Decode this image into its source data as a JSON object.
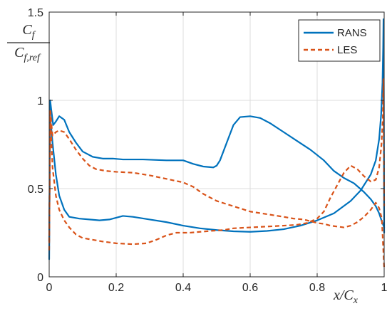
{
  "chart_data": {
    "type": "line",
    "xlabel": "x/C_x",
    "ylabel": "C_f / C_f,ref",
    "xlim": [
      0,
      1
    ],
    "ylim": [
      0,
      1.5
    ],
    "xticks": [
      0,
      0.2,
      0.4,
      0.6,
      0.8,
      1
    ],
    "xtick_labels": [
      "0",
      "0.2",
      "0.4",
      "0.6",
      "0.8",
      "1"
    ],
    "yticks": [
      0,
      0.5,
      1,
      1.5
    ],
    "ytick_labels": [
      "0",
      "0.5",
      "1",
      "1.5"
    ],
    "grid": true,
    "legend_position": "top-right",
    "series": [
      {
        "name": "RANS",
        "color": "#0072BD",
        "dash": "solid",
        "curves": [
          [
            [
              0.0,
              0.1
            ],
            [
              0.003,
              1.0
            ],
            [
              0.006,
              0.95
            ],
            [
              0.012,
              0.86
            ],
            [
              0.02,
              0.88
            ],
            [
              0.03,
              0.91
            ],
            [
              0.045,
              0.89
            ],
            [
              0.06,
              0.82
            ],
            [
              0.08,
              0.76
            ],
            [
              0.1,
              0.71
            ],
            [
              0.13,
              0.68
            ],
            [
              0.16,
              0.67
            ],
            [
              0.19,
              0.67
            ],
            [
              0.22,
              0.665
            ],
            [
              0.28,
              0.665
            ],
            [
              0.35,
              0.66
            ],
            [
              0.4,
              0.66
            ],
            [
              0.43,
              0.64
            ],
            [
              0.46,
              0.625
            ],
            [
              0.49,
              0.62
            ],
            [
              0.5,
              0.63
            ],
            [
              0.51,
              0.66
            ],
            [
              0.53,
              0.76
            ],
            [
              0.55,
              0.86
            ],
            [
              0.57,
              0.905
            ],
            [
              0.6,
              0.91
            ],
            [
              0.63,
              0.9
            ],
            [
              0.66,
              0.87
            ],
            [
              0.7,
              0.82
            ],
            [
              0.74,
              0.77
            ],
            [
              0.78,
              0.72
            ],
            [
              0.82,
              0.66
            ],
            [
              0.85,
              0.6
            ],
            [
              0.88,
              0.56
            ],
            [
              0.91,
              0.53
            ],
            [
              0.94,
              0.48
            ],
            [
              0.96,
              0.44
            ],
            [
              0.975,
              0.4
            ],
            [
              0.985,
              0.36
            ],
            [
              0.992,
              0.32
            ],
            [
              1.0,
              0.28
            ]
          ],
          [
            [
              0.0,
              0.2
            ],
            [
              0.003,
              0.9
            ],
            [
              0.006,
              0.85
            ],
            [
              0.01,
              0.76
            ],
            [
              0.02,
              0.58
            ],
            [
              0.03,
              0.46
            ],
            [
              0.045,
              0.38
            ],
            [
              0.06,
              0.34
            ],
            [
              0.09,
              0.33
            ],
            [
              0.12,
              0.325
            ],
            [
              0.15,
              0.32
            ],
            [
              0.18,
              0.325
            ],
            [
              0.2,
              0.335
            ],
            [
              0.22,
              0.345
            ],
            [
              0.25,
              0.34
            ],
            [
              0.3,
              0.325
            ],
            [
              0.35,
              0.31
            ],
            [
              0.4,
              0.29
            ],
            [
              0.45,
              0.275
            ],
            [
              0.5,
              0.265
            ],
            [
              0.55,
              0.258
            ],
            [
              0.6,
              0.255
            ],
            [
              0.65,
              0.26
            ],
            [
              0.7,
              0.27
            ],
            [
              0.75,
              0.29
            ],
            [
              0.8,
              0.32
            ],
            [
              0.85,
              0.36
            ],
            [
              0.9,
              0.43
            ],
            [
              0.93,
              0.49
            ],
            [
              0.96,
              0.58
            ],
            [
              0.975,
              0.66
            ],
            [
              0.985,
              0.78
            ],
            [
              0.991,
              0.92
            ],
            [
              0.995,
              1.1
            ],
            [
              0.997,
              1.3
            ],
            [
              0.998,
              1.46
            ],
            [
              0.999,
              1.0
            ],
            [
              1.0,
              0.25
            ]
          ]
        ]
      },
      {
        "name": "LES",
        "color": "#D95319",
        "dash": "dashed",
        "curves": [
          [
            [
              0.0,
              0.15
            ],
            [
              0.003,
              0.95
            ],
            [
              0.006,
              0.88
            ],
            [
              0.01,
              0.8
            ],
            [
              0.02,
              0.82
            ],
            [
              0.03,
              0.83
            ],
            [
              0.045,
              0.82
            ],
            [
              0.06,
              0.78
            ],
            [
              0.08,
              0.72
            ],
            [
              0.1,
              0.67
            ],
            [
              0.12,
              0.63
            ],
            [
              0.14,
              0.61
            ],
            [
              0.17,
              0.6
            ],
            [
              0.2,
              0.595
            ],
            [
              0.25,
              0.59
            ],
            [
              0.3,
              0.575
            ],
            [
              0.35,
              0.555
            ],
            [
              0.4,
              0.535
            ],
            [
              0.43,
              0.51
            ],
            [
              0.46,
              0.47
            ],
            [
              0.5,
              0.43
            ],
            [
              0.55,
              0.4
            ],
            [
              0.6,
              0.37
            ],
            [
              0.65,
              0.355
            ],
            [
              0.7,
              0.34
            ],
            [
              0.73,
              0.33
            ],
            [
              0.76,
              0.325
            ],
            [
              0.78,
              0.315
            ],
            [
              0.8,
              0.305
            ],
            [
              0.82,
              0.3
            ],
            [
              0.84,
              0.29
            ],
            [
              0.86,
              0.285
            ],
            [
              0.88,
              0.28
            ],
            [
              0.9,
              0.29
            ],
            [
              0.92,
              0.31
            ],
            [
              0.94,
              0.34
            ],
            [
              0.96,
              0.38
            ],
            [
              0.975,
              0.42
            ],
            [
              0.985,
              0.39
            ],
            [
              0.993,
              0.33
            ],
            [
              1.0,
              0.05
            ]
          ],
          [
            [
              0.0,
              0.2
            ],
            [
              0.003,
              0.92
            ],
            [
              0.006,
              0.8
            ],
            [
              0.01,
              0.62
            ],
            [
              0.02,
              0.46
            ],
            [
              0.03,
              0.38
            ],
            [
              0.045,
              0.32
            ],
            [
              0.06,
              0.28
            ],
            [
              0.08,
              0.24
            ],
            [
              0.1,
              0.22
            ],
            [
              0.13,
              0.21
            ],
            [
              0.16,
              0.2
            ],
            [
              0.2,
              0.19
            ],
            [
              0.25,
              0.185
            ],
            [
              0.29,
              0.19
            ],
            [
              0.32,
              0.21
            ],
            [
              0.35,
              0.235
            ],
            [
              0.38,
              0.25
            ],
            [
              0.42,
              0.25
            ],
            [
              0.45,
              0.255
            ],
            [
              0.48,
              0.26
            ],
            [
              0.52,
              0.265
            ],
            [
              0.55,
              0.275
            ],
            [
              0.6,
              0.28
            ],
            [
              0.65,
              0.285
            ],
            [
              0.7,
              0.29
            ],
            [
              0.74,
              0.295
            ],
            [
              0.77,
              0.305
            ],
            [
              0.8,
              0.33
            ],
            [
              0.82,
              0.37
            ],
            [
              0.84,
              0.45
            ],
            [
              0.86,
              0.52
            ],
            [
              0.88,
              0.59
            ],
            [
              0.9,
              0.63
            ],
            [
              0.92,
              0.61
            ],
            [
              0.94,
              0.57
            ],
            [
              0.96,
              0.54
            ],
            [
              0.975,
              0.55
            ],
            [
              0.985,
              0.62
            ],
            [
              0.992,
              0.75
            ],
            [
              0.996,
              0.9
            ],
            [
              0.998,
              1.12
            ],
            [
              1.0,
              0.4
            ]
          ]
        ]
      }
    ]
  }
}
